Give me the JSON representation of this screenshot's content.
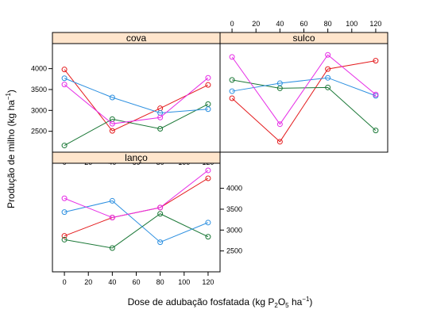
{
  "chart_data": {
    "type": "line",
    "xlabel": "Dose de adubação fosfatada (kg P",
    "xlabel_sub": "2",
    "xlabel_mid": "O",
    "xlabel_sub2": "5",
    "xlabel_end": " ha",
    "xlabel_sup": "−1",
    "xlabel_close": ")",
    "ylabel": "Produção de milho (kg ha",
    "ylabel_sup": "−1",
    "ylabel_close": ")",
    "x": [
      0,
      40,
      80,
      120
    ],
    "xlim": [
      -10,
      130
    ],
    "ylim": [
      2000,
      4600
    ],
    "x_ticks": [
      "0",
      "20",
      "40",
      "60",
      "80",
      "100",
      "120"
    ],
    "y_ticks": [
      "2500",
      "3000",
      "3500",
      "4000"
    ],
    "colors": [
      "#e41a1c",
      "#1b7837",
      "#2b8fe0",
      "#e62ce6"
    ],
    "panels": [
      {
        "name": "cova",
        "series": [
          {
            "values": [
              3980,
              2510,
              3050,
              3610
            ]
          },
          {
            "values": [
              2160,
              2790,
              2560,
              3150
            ]
          },
          {
            "values": [
              3770,
              3310,
              2940,
              3030
            ]
          },
          {
            "values": [
              3620,
              2680,
              2830,
              3780
            ]
          }
        ]
      },
      {
        "name": "sulco",
        "series": [
          {
            "values": [
              3290,
              2250,
              3990,
              4190
            ]
          },
          {
            "values": [
              3730,
              3530,
              3550,
              2520
            ]
          },
          {
            "values": [
              3460,
              3650,
              3780,
              3350
            ]
          },
          {
            "values": [
              4280,
              2670,
              4330,
              3380
            ]
          }
        ]
      },
      {
        "name": "lanço",
        "series": [
          {
            "values": [
              2860,
              3300,
              3540,
              4240
            ]
          },
          {
            "values": [
              2770,
              2570,
              3390,
              2840
            ]
          },
          {
            "values": [
              3430,
              3700,
              2710,
              3180
            ]
          },
          {
            "values": [
              3760,
              3300,
              3540,
              4430
            ]
          }
        ]
      }
    ]
  }
}
